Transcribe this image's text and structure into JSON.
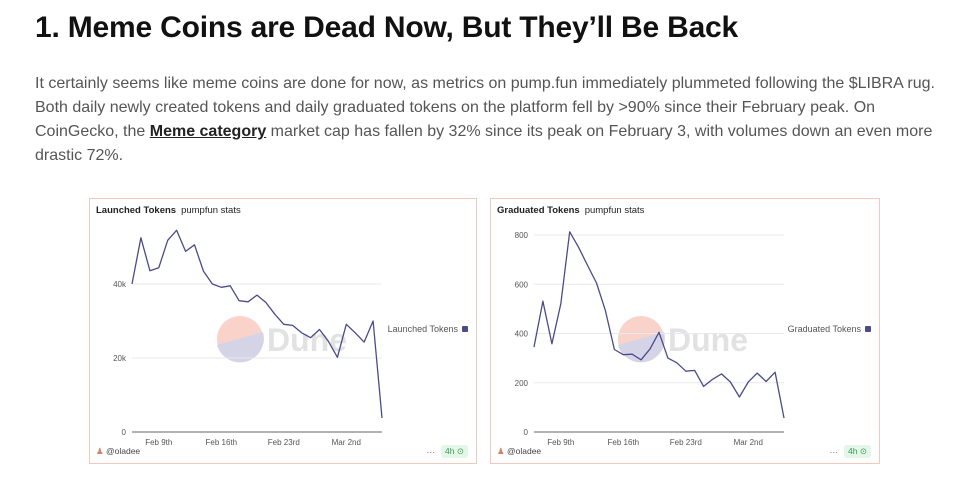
{
  "article": {
    "title": "1. Meme Coins are Dead Now, But They’ll Be Back",
    "para_before_link": "It certainly seems like meme coins are done for now, as metrics on pump.fun immediately plummeted following the $LIBRA rug. Both daily newly created tokens and daily graduated tokens on the platform fell by >90% since their February peak. On CoinGecko, the ",
    "link_text": "Meme category",
    "para_after_link": " market cap has fallen by 32% since its peak on February 3, with volumes down an even more drastic 72%."
  },
  "colors": {
    "line": "#4b4b8a",
    "border": "#f0c8bc",
    "watermark_red": "#f9d3c9",
    "watermark_blue": "#d4d4e6"
  },
  "chart_data": [
    {
      "type": "line",
      "title": "Launched Tokens",
      "subtitle": "pumpfun stats",
      "x_ticks": [
        "Feb 9th",
        "Feb 16th",
        "Feb 23rd",
        "Mar 2nd"
      ],
      "y_ticks": [
        "0",
        "20k",
        "40k"
      ],
      "ylim": [
        0,
        55000
      ],
      "grid": true,
      "legend": "right",
      "series": [
        {
          "name": "Launched Tokens",
          "values": [
            40000,
            52500,
            43600,
            44400,
            51800,
            54500,
            48800,
            50600,
            43500,
            40000,
            39100,
            39500,
            35500,
            35200,
            37000,
            35000,
            31800,
            29100,
            28800,
            26800,
            25500,
            27700,
            24500,
            20200,
            29100,
            26800,
            24300,
            30000,
            3800
          ]
        }
      ],
      "watermark": "Dune",
      "author": "@oladee",
      "menu": "···",
      "freshness": "4h"
    },
    {
      "type": "line",
      "title": "Graduated Tokens",
      "subtitle": "pumpfun stats",
      "x_ticks": [
        "Feb 9th",
        "Feb 16th",
        "Feb 23rd",
        "Mar 2nd"
      ],
      "y_ticks": [
        "0",
        "200",
        "400",
        "600",
        "800"
      ],
      "ylim": [
        0,
        800
      ],
      "grid": true,
      "legend": "right",
      "series": [
        {
          "name": "Graduated Tokens",
          "values": [
            345,
            531,
            358,
            520,
            813,
            750,
            676,
            605,
            493,
            335,
            314,
            316,
            293,
            338,
            405,
            300,
            281,
            247,
            250,
            185,
            214,
            236,
            203,
            142,
            203,
            239,
            205,
            243,
            57
          ]
        }
      ],
      "watermark": "Dune",
      "author": "@oladee",
      "menu": "···",
      "freshness": "4h"
    }
  ]
}
